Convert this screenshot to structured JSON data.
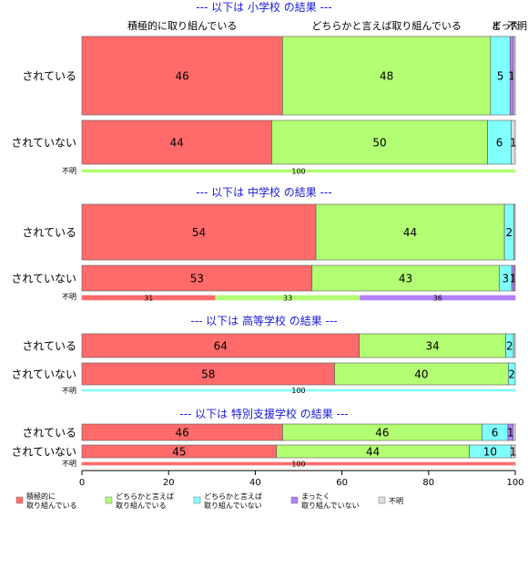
{
  "chart_data": {
    "type": "bar",
    "orientation": "horizontal",
    "stacked": true,
    "xlim": [
      0,
      100
    ],
    "x_ticks": [
      "0",
      "20",
      "40",
      "60",
      "80",
      "100"
    ],
    "top_category_labels": [
      "積極的に取り組んでいる",
      "どちらかと言えば取り組んでいる",
      "ど",
      "まった",
      "不明"
    ],
    "series": [
      {
        "name": "積極的に\n取り組んでいる",
        "color": "#ff6b6b"
      },
      {
        "name": "どちらかと言えば\n取り組んでいる",
        "color": "#b3ff73"
      },
      {
        "name": "どちらかと言えば\n取り組んでいない",
        "color": "#80ffff"
      },
      {
        "name": "まったく\n取り組んでいない",
        "color": "#b27fff"
      },
      {
        "name": "不明",
        "color": "#dddddd"
      }
    ],
    "panels": [
      {
        "title": "--- 以下は 小学校 の結果 ---",
        "rows": [
          {
            "label": "されている",
            "values": [
              46.3,
              48.0,
              4.5,
              0.8,
              0.4
            ],
            "labels": [
              "46",
              "48",
              "5",
              "1",
              ""
            ]
          },
          {
            "label": "されていない",
            "values": [
              43.8,
              49.8,
              5.5,
              0.0,
              0.9
            ],
            "labels": [
              "44",
              "50",
              "6",
              "",
              "1"
            ]
          }
        ],
        "unknown": {
          "label": "不明",
          "values": [
            0,
            100,
            0,
            0,
            0
          ],
          "labels": [
            "",
            "100",
            "",
            "",
            ""
          ]
        }
      },
      {
        "title": "--- 以下は 中学校 の結果 ---",
        "rows": [
          {
            "label": "されている",
            "values": [
              54.0,
              43.5,
              2.2,
              0.0,
              0.3
            ],
            "labels": [
              "54",
              "44",
              "2",
              "",
              ""
            ]
          },
          {
            "label": "されていない",
            "values": [
              53.1,
              43.2,
              2.9,
              0.6,
              0.2
            ],
            "labels": [
              "53",
              "43",
              "3",
              "1",
              ""
            ]
          }
        ],
        "unknown": {
          "label": "不明",
          "values": [
            30.8,
            33.4,
            0.0,
            35.8,
            0.0
          ],
          "labels": [
            "31",
            "33",
            "",
            "36",
            ""
          ]
        }
      },
      {
        "title": "--- 以下は 高等学校 の結果 ---",
        "rows": [
          {
            "label": "されている",
            "values": [
              64.0,
              33.8,
              1.8,
              0.0,
              0.4
            ],
            "labels": [
              "64",
              "34",
              "2",
              "",
              ""
            ]
          },
          {
            "label": "されていない",
            "values": [
              58.3,
              40.1,
              1.6,
              0.0,
              0.0
            ],
            "labels": [
              "58",
              "40",
              "2",
              "",
              ""
            ]
          }
        ],
        "unknown": {
          "label": "不明",
          "values": [
            0,
            0,
            100,
            0,
            0
          ],
          "labels": [
            "",
            "",
            "100",
            "",
            ""
          ]
        }
      },
      {
        "title": "--- 以下は 特別支援学校 の結果 ---",
        "rows": [
          {
            "label": "されている",
            "values": [
              46.3,
              46.0,
              6.0,
              1.2,
              0.5
            ],
            "labels": [
              "46",
              "46",
              "6",
              "1",
              ""
            ]
          },
          {
            "label": "されていない",
            "values": [
              44.9,
              44.5,
              9.6,
              0.0,
              1.0
            ],
            "labels": [
              "45",
              "44",
              "10",
              "",
              "1"
            ]
          }
        ],
        "unknown": {
          "label": "不明",
          "values": [
            100,
            0,
            0,
            0,
            0
          ],
          "labels": [
            "100",
            "",
            "",
            "",
            ""
          ]
        }
      }
    ]
  }
}
